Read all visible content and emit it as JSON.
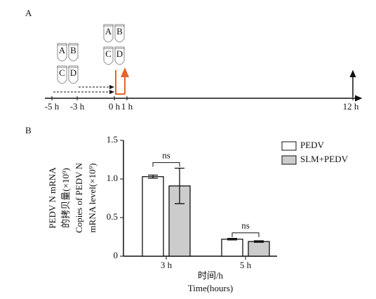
{
  "panel_a": {
    "label": "A",
    "tube_sets": [
      [
        "A",
        "B",
        "C",
        "D"
      ],
      [
        "A",
        "B",
        "C",
        "D"
      ]
    ],
    "time_labels": [
      "-5 h",
      "-3 h",
      "0 h",
      "1 h",
      "12 h"
    ]
  },
  "chart_data": {
    "type": "bar",
    "label": "B",
    "y_label": [
      "PEDV N mRNA",
      "的拷贝量(×10⁹)",
      "Copies of PEDV N",
      "mRNA level(×10⁹)"
    ],
    "x_label": [
      "时间/h",
      "Time(hours)"
    ],
    "categories": [
      "3 h",
      "5 h"
    ],
    "series": [
      {
        "name": "PEDV",
        "color": "#ffffff",
        "values": [
          1.03,
          0.22
        ],
        "errors": [
          0.02,
          0.01
        ]
      },
      {
        "name": "SLM+PEDV",
        "color": "#cccccc",
        "values": [
          0.91,
          0.19
        ],
        "errors": [
          0.23,
          0.01
        ]
      }
    ],
    "annotations": [
      "ns",
      "ns"
    ],
    "ylim": [
      0,
      1.5
    ],
    "yticks": [
      0,
      0.5,
      {
        "value": 1,
        "label": "1.0"
      },
      1.5
    ]
  }
}
